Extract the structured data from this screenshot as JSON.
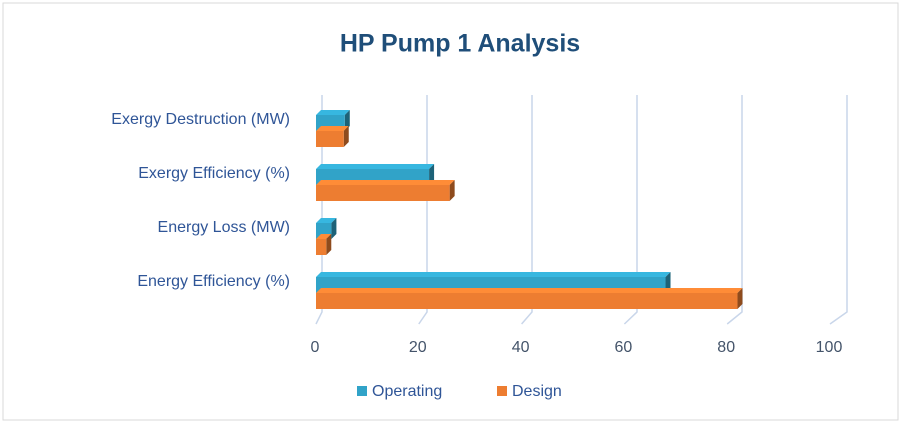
{
  "chart_data": {
    "type": "bar",
    "orientation": "horizontal",
    "title": "HP Pump 1 Analysis",
    "categories": [
      "Energy Efficiency (%)",
      "Energy Loss (MW)",
      "Exergy Efficiency (%)",
      "Exergy Destruction (MW)"
    ],
    "series": [
      {
        "name": "Operating",
        "color": "#31a3c8",
        "values": [
          68,
          3,
          22,
          5.6
        ]
      },
      {
        "name": "Design",
        "color": "#ed7d31",
        "values": [
          82,
          2,
          26,
          5.4
        ]
      }
    ],
    "xlim": [
      0,
      100
    ],
    "xticks": [
      0,
      20,
      40,
      60,
      80,
      100
    ],
    "grid": true,
    "legend": "bottom"
  }
}
